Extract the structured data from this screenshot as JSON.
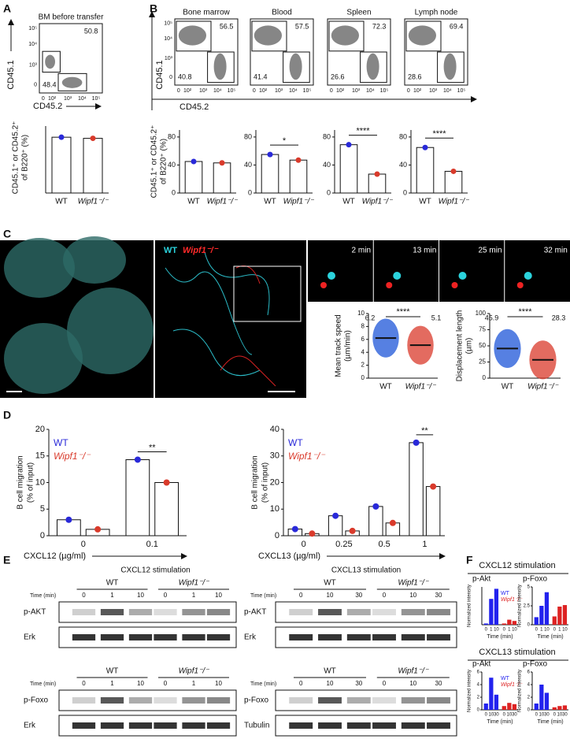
{
  "panel_labels": [
    "A",
    "B",
    "C",
    "D",
    "E",
    "F"
  ],
  "A": {
    "flow": {
      "title": "BM before transfer",
      "gates": [
        50.8,
        48.4
      ],
      "yticks": [
        "10⁵",
        "10⁴",
        "10³",
        "0"
      ],
      "xticks": [
        "0",
        "10²",
        "10³",
        "10⁴",
        "10⁵"
      ],
      "ylabel": "CD45.1",
      "xlabel": "CD45.2"
    },
    "bar": {
      "ylabel": [
        "CD45.1⁺ or CD45.2⁺",
        "of B220⁺ (%)"
      ],
      "categories": [
        "WT",
        "Wipf1⁻/⁻"
      ],
      "values": [
        50,
        49
      ],
      "colors": [
        "#2929d9",
        "#d93a2b"
      ],
      "ylim": [
        0,
        60
      ]
    }
  },
  "B": {
    "flow": {
      "plots": [
        {
          "title": "Bone marrow",
          "gates": [
            56.5,
            40.8
          ]
        },
        {
          "title": "Blood",
          "gates": [
            57.5,
            41.4
          ]
        },
        {
          "title": "Spleen",
          "gates": [
            72.3,
            26.6
          ]
        },
        {
          "title": "Lymph node",
          "gates": [
            69.4,
            28.6
          ]
        }
      ],
      "yticks": [
        "10⁵",
        "10⁴",
        "10³",
        "0"
      ],
      "xticks": [
        "0",
        "10²",
        "10³",
        "10⁴",
        "10⁵"
      ],
      "ylabel": "CD45.1",
      "xlabel": "CD45.2"
    },
    "colors": [
      "#2929d9",
      "#d93a2b"
    ],
    "bars": [
      {
        "ylabel": [
          "CD45.1⁺ or CD45.2⁺",
          "of B220⁺ (%)"
        ],
        "categories": [
          "WT",
          "Wipf1⁻/⁻"
        ],
        "values": [
          45,
          43
        ],
        "ylim": [
          0,
          90
        ],
        "yticks": [
          0,
          40,
          80
        ]
      },
      {
        "categories": [
          "WT",
          "Wipf1⁻/⁻"
        ],
        "values": [
          55,
          47
        ],
        "ylim": [
          0,
          90
        ],
        "yticks": [
          0,
          40,
          80
        ],
        "sig": "*"
      },
      {
        "categories": [
          "WT",
          "Wipf1⁻/⁻"
        ],
        "values": [
          69,
          27
        ],
        "ylim": [
          0,
          90
        ],
        "yticks": [
          0,
          40,
          80
        ],
        "sig": "****"
      },
      {
        "categories": [
          "WT",
          "Wipf1⁻/⁻"
        ],
        "values": [
          65,
          31
        ],
        "ylim": [
          0,
          90
        ],
        "yticks": [
          0,
          40,
          80
        ],
        "sig": "****"
      }
    ]
  },
  "C": {
    "legend": [
      "WT",
      "Wipf1⁻/⁻"
    ],
    "times": [
      "2 min",
      "13 min",
      "25 min",
      "32 min"
    ],
    "colors": [
      "#1e56d8",
      "#d93a2b"
    ],
    "speed": {
      "ylabel": [
        "Mean track speed",
        "(µm/min)"
      ],
      "categories": [
        "WT",
        "Wipf1⁻/⁻"
      ],
      "means": [
        6.2,
        5.1
      ],
      "sig": "****",
      "ylim": [
        0,
        10
      ],
      "yticks": [
        0,
        2,
        4,
        6,
        8,
        10
      ]
    },
    "displacement": {
      "ylabel": [
        "Displacement length",
        "(µm)"
      ],
      "categories": [
        "WT",
        "Wipf1⁻/⁻"
      ],
      "means": [
        45.9,
        28.3
      ],
      "sig": "****",
      "ylim": [
        0,
        100
      ],
      "yticks": [
        0,
        25,
        50,
        75,
        100
      ]
    }
  },
  "D": {
    "left": {
      "ylabel": [
        "B cell migration",
        "(% of input)"
      ],
      "xlabel": "CXCL12 (µg/ml)",
      "categories": [
        "0",
        "0.1"
      ],
      "series": [
        {
          "name": "WT",
          "color": "#2929d9",
          "values": [
            3.0,
            14.3
          ]
        },
        {
          "name": "Wipf1⁻/⁻",
          "color": "#d93a2b",
          "values": [
            1.2,
            10.0
          ]
        }
      ],
      "ylim": [
        0,
        20
      ],
      "yticks": [
        0,
        5,
        10,
        15,
        20
      ],
      "sig": "**"
    },
    "right": {
      "ylabel": [
        "B cell migration",
        "(% of input)"
      ],
      "xlabel": "CXCL13 (µg/ml)",
      "categories": [
        "0",
        "0.25",
        "0.5",
        "1"
      ],
      "series": [
        {
          "name": "WT",
          "color": "#2929d9",
          "values": [
            2.5,
            7.5,
            11,
            35
          ]
        },
        {
          "name": "Wipf1⁻/⁻",
          "color": "#d93a2b",
          "values": [
            0.8,
            1.8,
            4.8,
            18.5
          ]
        }
      ],
      "ylim": [
        0,
        40
      ],
      "yticks": [
        0,
        10,
        20,
        30,
        40
      ],
      "sig": "**"
    }
  },
  "E": {
    "blocks": [
      {
        "title": "CXCL12 stimulation",
        "groups": [
          "WT",
          "Wipf1⁻/⁻"
        ],
        "time_label": "Time (min)",
        "times": [
          "0",
          "1",
          "10"
        ],
        "rows": [
          "p-AKT",
          "Erk"
        ]
      },
      {
        "title": "CXCL13 stimulation",
        "groups": [
          "WT",
          "Wipf1⁻/⁻"
        ],
        "time_label": "Time (min)",
        "times": [
          "0",
          "10",
          "30"
        ],
        "rows": [
          "p-AKT",
          "Erk"
        ]
      },
      {
        "groups": [
          "WT",
          "Wipf1⁻/⁻"
        ],
        "time_label": "Time (min)",
        "times": [
          "0",
          "1",
          "10"
        ],
        "rows": [
          "p-Foxo",
          "Erk"
        ]
      },
      {
        "groups": [
          "WT",
          "Wipf1⁻/⁻"
        ],
        "time_label": "Time (min)",
        "times": [
          "0",
          "10",
          "30"
        ],
        "rows": [
          "p-Foxo",
          "Tubulin"
        ]
      }
    ]
  },
  "F": {
    "ylabel": "Normalized intensity",
    "xlabel": "Time (min)",
    "blocks": [
      {
        "title": "CXCL12 stimulation",
        "categories": [
          "0",
          "1",
          "10"
        ],
        "charts": [
          {
            "name": "p-Akt",
            "ylim": [
              0,
              30
            ],
            "series": [
              {
                "name": "WT",
                "color": "#2222ee",
                "values": [
                  1,
                  20.5,
                  28.5
                ]
              },
              {
                "name": "Wipf1⁻/⁻",
                "color": "#dd2222",
                "values": [
                  1,
                  4,
                  3
                ]
              }
            ]
          },
          {
            "name": "p-Foxo",
            "ylim": [
              0,
              5
            ],
            "yticks": [
              0,
              2.5,
              5
            ],
            "series": [
              {
                "name": "WT",
                "color": "#2222ee",
                "values": [
                  1,
                  2.5,
                  4.3
                ]
              },
              {
                "name": "Wipf1⁻/⁻",
                "color": "#dd2222",
                "values": [
                  1.1,
                  2.4,
                  2.6
                ]
              }
            ]
          }
        ]
      },
      {
        "title": "CXCL13 stimulation",
        "categories": [
          "0",
          "10",
          "30"
        ],
        "charts": [
          {
            "name": "p-Akt",
            "ylim": [
              0,
              6
            ],
            "yticks": [
              0,
              2,
              4,
              6
            ],
            "series": [
              {
                "name": "WT",
                "color": "#2222ee",
                "values": [
                  1,
                  5.1,
                  2.4
                ]
              },
              {
                "name": "Wipf1⁻/⁻",
                "color": "#dd2222",
                "values": [
                  0.6,
                  1.1,
                  0.9
                ]
              }
            ]
          },
          {
            "name": "p-Foxo",
            "ylim": [
              0,
              6
            ],
            "yticks": [
              0,
              2,
              4,
              6
            ],
            "series": [
              {
                "name": "WT",
                "color": "#2222ee",
                "values": [
                  1,
                  4,
                  2.7
                ]
              },
              {
                "name": "Wipf1⁻/⁻",
                "color": "#dd2222",
                "values": [
                  0.4,
                  0.6,
                  0.7
                ]
              }
            ]
          }
        ]
      }
    ]
  }
}
